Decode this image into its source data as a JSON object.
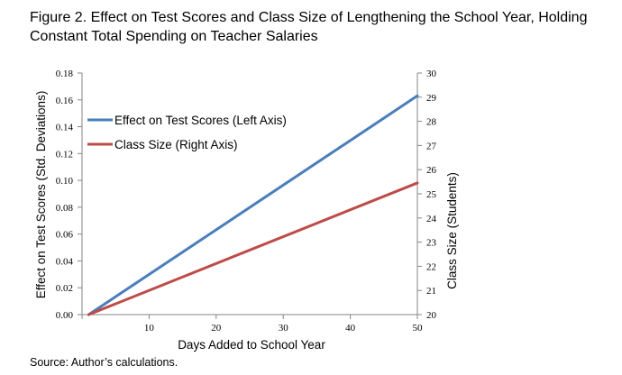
{
  "chart_data": {
    "type": "line",
    "title": "Figure 2. Effect on Test Scores and Class Size of Lengthening the School Year, Holding Constant Total Spending on Teacher Salaries",
    "source": "Source: Author’s calculations.",
    "xlabel": "Days Added to School Year",
    "ylabel_left": "Effect on Test Scores (Std. Deviations)",
    "ylabel_right": "Class Size (Students)",
    "xlim": [
      0,
      50
    ],
    "ylim_left": [
      0,
      0.18
    ],
    "ylim_right": [
      20,
      30
    ],
    "x_ticks": [
      "10",
      "20",
      "30",
      "40",
      "50"
    ],
    "y_left_ticks": [
      "0.00",
      "0.02",
      "0.04",
      "0.06",
      "0.08",
      "0.10",
      "0.12",
      "0.14",
      "0.16",
      "0.18"
    ],
    "y_right_ticks": [
      "20",
      "21",
      "22",
      "23",
      "24",
      "25",
      "26",
      "27",
      "28",
      "29",
      "30"
    ],
    "grid": false,
    "legend_position": "top-left",
    "series": [
      {
        "name": "Effect on Test Scores (Left Axis)",
        "axis": "left",
        "color": "#4a7ebb",
        "x": [
          1,
          50
        ],
        "y": [
          0.0,
          0.163
        ]
      },
      {
        "name": "Class Size (Right Axis)",
        "axis": "right",
        "color": "#be4b48",
        "x": [
          1,
          50
        ],
        "y": [
          20.0,
          25.45
        ]
      }
    ]
  }
}
